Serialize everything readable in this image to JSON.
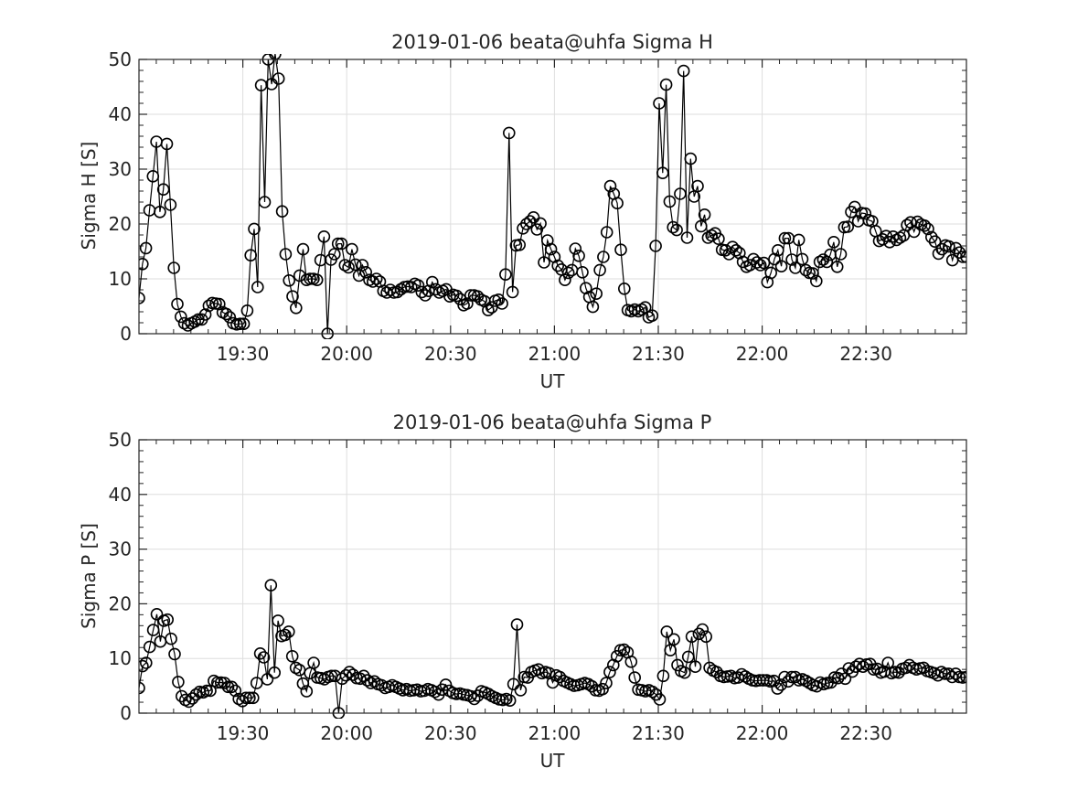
{
  "chart_data": [
    {
      "type": "line",
      "title": "2019-01-06  beata@uhfa Sigma H",
      "xlabel": "UT",
      "ylabel": "Sigma H [S]",
      "x_start": "19:00",
      "x_end": "22:59",
      "x_tick_labels": [
        "19:30",
        "20:00",
        "20:30",
        "21:00",
        "21:30",
        "22:00",
        "22:30"
      ],
      "ylim": [
        0,
        50
      ],
      "y_tick_labels": [
        "0",
        "10",
        "20",
        "30",
        "40",
        "50"
      ],
      "grid": true,
      "marker": "open-circle",
      "line_color": "#000000",
      "series": [
        {
          "values": [
            6.5,
            12.7,
            15.6,
            22.5,
            28.7,
            35,
            22.2,
            26.3,
            34.6,
            23.5,
            12,
            5.4,
            3.1,
            1.9,
            1.5,
            1.9,
            2.2,
            2.6,
            2.6,
            3.5,
            5.1,
            5.6,
            5.5,
            5.4,
            3.9,
            3.6,
            3,
            1.9,
            1.7,
            1.8,
            1.8,
            4.2,
            14.3,
            19.1,
            8.5,
            45.3,
            24,
            50,
            45.5,
            51,
            46.5,
            22.3,
            14.5,
            9.7,
            6.8,
            4.7,
            10.6,
            15.4,
            9.8,
            10,
            10,
            9.8,
            13.4,
            17.7,
            0,
            13.5,
            14.5,
            16.4,
            16.4,
            12.5,
            12.1,
            15.4,
            12.6,
            10.6,
            12.5,
            11.2,
            9.8,
            9.5,
            10,
            9.5,
            7.8,
            7.5,
            8,
            7.5,
            7.6,
            8.1,
            8.5,
            8.6,
            8.5,
            9.1,
            8.8,
            7.6,
            7,
            7.8,
            9.4,
            8.1,
            7.5,
            7.8,
            8.1,
            6.8,
            7.1,
            6.9,
            6.3,
            5.2,
            5.5,
            7,
            7,
            6.8,
            6.2,
            5.9,
            4.3,
            4.8,
            6,
            6.2,
            5.5,
            10.8,
            36.6,
            7.6,
            16.1,
            16.2,
            19.2,
            20,
            20.5,
            21.2,
            19,
            20.1,
            13,
            17,
            15.4,
            14,
            12.4,
            11.7,
            9.8,
            11.1,
            11.6,
            15.5,
            14.2,
            11.2,
            8.3,
            6.7,
            4.9,
            7.3,
            11.6,
            14,
            18.5,
            26.9,
            25.5,
            23.8,
            15.3,
            8.2,
            4.3,
            4.1,
            4.4,
            4.1,
            4.4,
            4.8,
            3,
            3.3,
            16,
            42,
            29.3,
            45.4,
            24.1,
            19.4,
            18.9,
            25.5,
            47.9,
            17.5,
            31.9,
            25,
            26.9,
            19.6,
            21.7,
            17.5,
            17.9,
            18.3,
            17.3,
            15.3,
            15.2,
            14.5,
            15.8,
            15.2,
            14.7,
            13.1,
            12.2,
            12.5,
            13.6,
            13,
            12.5,
            12.9,
            9.4,
            11.1,
            13.6,
            15.2,
            12.3,
            17.4,
            17.4,
            13.5,
            12,
            17.1,
            13.6,
            11.6,
            11.1,
            11,
            9.6,
            13.1,
            13.5,
            13.1,
            14.4,
            16.7,
            12.2,
            14.5,
            19.4,
            19.5,
            22.2,
            23.1,
            20.5,
            22,
            21.9,
            20.7,
            20.5,
            18.7,
            16.9,
            17.2,
            17.8,
            16.7,
            17.7,
            17.1,
            17.5,
            17.9,
            19.8,
            20.3,
            18.6,
            20.4,
            19.9,
            19.7,
            19.1,
            17.6,
            16.8,
            14.6,
            15.4,
            16.1,
            15.9,
            13.4,
            15.6,
            14.8,
            14,
            14
          ]
        }
      ]
    },
    {
      "type": "line",
      "title": "2019-01-06  beata@uhfa Sigma P",
      "xlabel": "UT",
      "ylabel": "Sigma P [S]",
      "x_start": "19:00",
      "x_end": "22:59",
      "x_tick_labels": [
        "19:30",
        "20:00",
        "20:30",
        "21:00",
        "21:30",
        "22:00",
        "22:30"
      ],
      "ylim": [
        0,
        50
      ],
      "y_tick_labels": [
        "0",
        "10",
        "20",
        "30",
        "40",
        "50"
      ],
      "grid": true,
      "marker": "open-circle",
      "line_color": "#000000",
      "series": [
        {
          "values": [
            4.6,
            8.6,
            9.2,
            12.1,
            15.2,
            18.1,
            13.1,
            16.9,
            17.1,
            13.6,
            10.8,
            5.7,
            3.1,
            2.4,
            2.1,
            2.7,
            3.4,
            3.9,
            3.8,
            4.1,
            4.1,
            5.9,
            5.6,
            5.6,
            5.5,
            4.8,
            4.8,
            4.1,
            2.6,
            2.2,
            2.8,
            2.8,
            2.8,
            5.5,
            10.9,
            10.2,
            6.2,
            23.4,
            7.4,
            16.9,
            14.1,
            14.3,
            14.9,
            10.4,
            8.3,
            7.9,
            5.4,
            4,
            7.3,
            9.2,
            6.5,
            6.4,
            6.2,
            6.6,
            6.8,
            6.8,
            0,
            6.3,
            6.9,
            7.5,
            7,
            6.4,
            6.3,
            6.8,
            6,
            5.5,
            5.8,
            5.3,
            5.1,
            4.6,
            4.8,
            5.1,
            4.8,
            4.5,
            4.2,
            4.4,
            4.1,
            4.2,
            4.3,
            4,
            4.1,
            4.4,
            4.2,
            3.9,
            3.4,
            4.3,
            5.2,
            4.1,
            3.7,
            3.5,
            3.6,
            3.4,
            3.3,
            3.1,
            2.6,
            3.2,
            4,
            3.8,
            3.5,
            3.1,
            2.8,
            2.5,
            2.4,
            2.6,
            2.3,
            5.3,
            16.2,
            4.2,
            6.6,
            6.5,
            7.5,
            7.8,
            8,
            7.3,
            7.5,
            7.3,
            5.6,
            6.9,
            6.6,
            5.9,
            5.6,
            5.3,
            5,
            5.1,
            5.3,
            5.5,
            5.3,
            4.9,
            4.2,
            4.1,
            4.4,
            5.5,
            7.5,
            8.8,
            10.4,
            11.5,
            11.6,
            11.1,
            9.4,
            6.5,
            4.3,
            4.2,
            4,
            4.2,
            3.9,
            3.4,
            2.5,
            6.8,
            14.9,
            11.5,
            13.5,
            8.8,
            7.7,
            7.4,
            10.3,
            14,
            8.5,
            14.5,
            15.3,
            14,
            8.3,
            7.8,
            7.5,
            6.8,
            6.6,
            6.7,
            6.8,
            6.4,
            6.5,
            7.1,
            6.7,
            6.3,
            6,
            5.9,
            6,
            6,
            6,
            5.8,
            5.9,
            4.5,
            5.2,
            6.6,
            5.8,
            6.6,
            6.6,
            6,
            6.2,
            5.9,
            5.5,
            5.1,
            4.9,
            5.6,
            5.3,
            5.5,
            5.6,
            6.5,
            6.4,
            7.2,
            6.3,
            8.2,
            7.6,
            8.5,
            9,
            8.5,
            8.9,
            9,
            8,
            8.1,
            7.4,
            7.6,
            9.2,
            7.3,
            7.5,
            7.4,
            8.1,
            8.3,
            8.8,
            8.3,
            8,
            8.2,
            8.3,
            7.7,
            7.5,
            7.3,
            6.9,
            7.5,
            7.2,
            7.2,
            6.6,
            7.2,
            6.6,
            6.5,
            6.6
          ]
        }
      ]
    }
  ]
}
